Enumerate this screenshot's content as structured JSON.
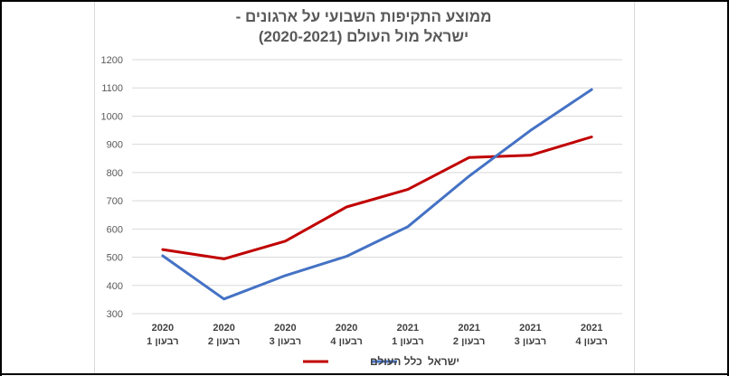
{
  "chart_data": {
    "type": "line",
    "title_line1": "ממוצע התקיפות השבועי על ארגונים -",
    "title_line2": "ישראל מול העולם (2020-2021)",
    "categories": [
      {
        "year": "2020",
        "quarter": "רבעון 1"
      },
      {
        "year": "2020",
        "quarter": "רבעון 2"
      },
      {
        "year": "2020",
        "quarter": "רבעון 3"
      },
      {
        "year": "2020",
        "quarter": "רבעון 4"
      },
      {
        "year": "2021",
        "quarter": "רבעון 1"
      },
      {
        "year": "2021",
        "quarter": "רבעון 2"
      },
      {
        "year": "2021",
        "quarter": "רבעון 3"
      },
      {
        "year": "2021",
        "quarter": "רבעון 4"
      }
    ],
    "series": [
      {
        "name": "כלל העולם",
        "color": "#c00000",
        "values": [
          527,
          494,
          557,
          678,
          740,
          853,
          861,
          926
        ]
      },
      {
        "name": "ישראל",
        "color": "#4472c4",
        "values": [
          505,
          352,
          435,
          503,
          608,
          787,
          949,
          1094
        ]
      }
    ],
    "ylim": [
      300,
      1200
    ],
    "yticks": [
      "300",
      "400",
      "500",
      "600",
      "700",
      "800",
      "900",
      "1000",
      "1100",
      "1200"
    ],
    "grid": true,
    "legend_position": "bottom"
  }
}
